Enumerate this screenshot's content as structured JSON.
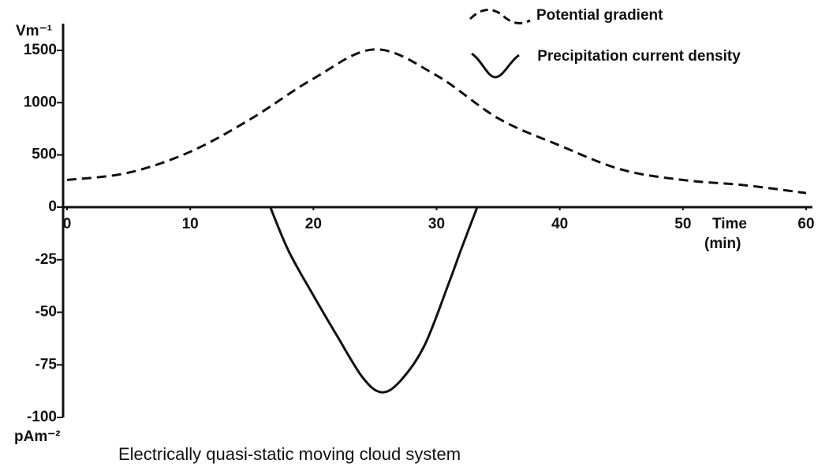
{
  "chart_data": {
    "type": "line",
    "title": "Electrically quasi-static moving cloud system",
    "x_label": "Time",
    "x_label_unit": "(min)",
    "y_label": "Vm⁻¹",
    "y2_label": "pAm⁻²",
    "xlim": [
      0,
      60
    ],
    "xticks": [
      0,
      10,
      20,
      30,
      40,
      50,
      60
    ],
    "ylim": [
      0,
      1500
    ],
    "yticks": [
      0,
      500,
      1000,
      1500
    ],
    "y2lim": [
      -100,
      0
    ],
    "y2ticks": [
      -25,
      -50,
      -75,
      -100
    ],
    "series": [
      {
        "name": "Potential gradient",
        "color": "#111111",
        "dashed": true,
        "x": [
          0,
          5,
          10,
          15,
          20,
          25,
          30,
          35,
          40,
          45,
          50,
          55,
          60
        ],
        "values": [
          260,
          330,
          530,
          850,
          1230,
          1510,
          1260,
          850,
          590,
          360,
          260,
          210,
          135
        ]
      },
      {
        "name": "Precipitation current density",
        "color": "#111111",
        "dashed": false,
        "axis": "y2",
        "x": [
          16.5,
          18,
          20,
          22,
          24,
          25.5,
          27,
          29,
          31,
          32,
          33.3
        ],
        "values": [
          0,
          -21,
          -42,
          -62,
          -81,
          -88,
          -83,
          -66,
          -36,
          -20,
          0
        ]
      }
    ]
  }
}
